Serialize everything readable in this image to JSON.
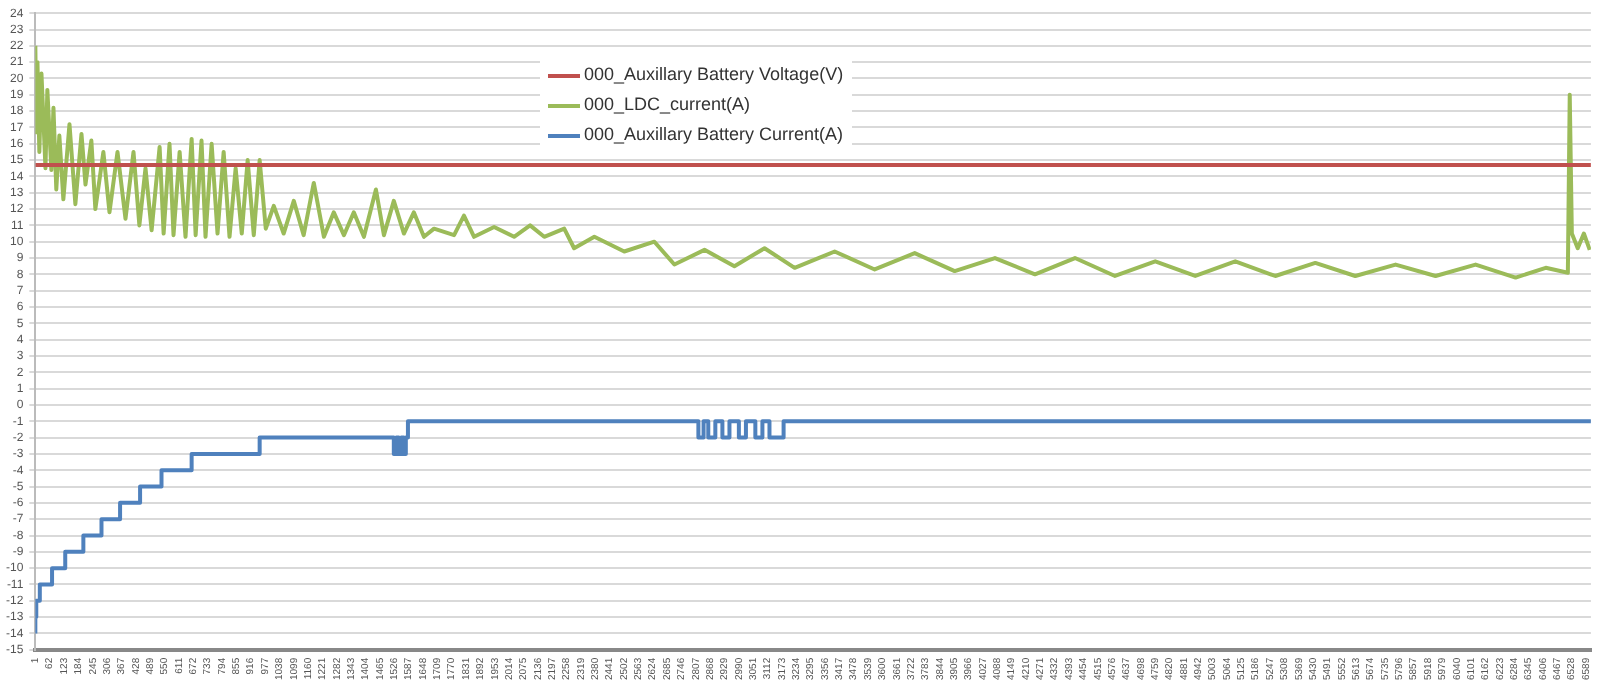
{
  "chart_data": {
    "type": "line",
    "xlim": [
      1,
      6610
    ],
    "ylim": [
      -15,
      24
    ],
    "xticks": [
      1,
      62,
      123,
      184,
      245,
      306,
      367,
      428,
      489,
      550,
      611,
      672,
      733,
      794,
      855,
      916,
      977,
      1038,
      1099,
      1160,
      1221,
      1282,
      1343,
      1404,
      1465,
      1526,
      1587,
      1648,
      1709,
      1770,
      1831,
      1892,
      1953,
      2014,
      2075,
      2136,
      2197,
      2258,
      2319,
      2380,
      2441,
      2502,
      2563,
      2624,
      2685,
      2746,
      2807,
      2868,
      2929,
      2990,
      3051,
      3112,
      3173,
      3234,
      3295,
      3356,
      3417,
      3478,
      3539,
      3600,
      3661,
      3722,
      3783,
      3844,
      3905,
      3966,
      4027,
      4088,
      4149,
      4210,
      4271,
      4332,
      4393,
      4454,
      4515,
      4576,
      4637,
      4698,
      4759,
      4820,
      4881,
      4942,
      5003,
      5064,
      5125,
      5186,
      5247,
      5308,
      5369,
      5430,
      5491,
      5552,
      5613,
      5674,
      5735,
      5796,
      5857,
      5918,
      5979,
      6040,
      6101,
      6162,
      6223,
      6284,
      6345,
      6406,
      6467,
      6528,
      6589
    ],
    "yticks": [
      -15,
      -14,
      -13,
      -12,
      -11,
      -10,
      -9,
      -8,
      -7,
      -6,
      -5,
      -4,
      -3,
      -2,
      -1,
      0,
      1,
      2,
      3,
      4,
      5,
      6,
      7,
      8,
      9,
      10,
      11,
      12,
      13,
      14,
      15,
      16,
      17,
      18,
      19,
      20,
      21,
      22,
      23,
      24
    ],
    "grid": "y",
    "legend": "top",
    "marker": "none",
    "line_style": "solid",
    "series": [
      {
        "name": "000_Auxillary Battery Voltage(V)",
        "color": "#c0504d",
        "type": "line",
        "x": [
          1,
          6610
        ],
        "values": [
          14.7,
          14.7
        ]
      },
      {
        "name": "000_LDC_current(A)",
        "color": "#9bbb59",
        "type": "line",
        "x": [
          1,
          5,
          10,
          18,
          27,
          44,
          52,
          69,
          78,
          90,
          103,
          120,
          146,
          171,
          197,
          214,
          239,
          256,
          290,
          316,
          350,
          384,
          418,
          443,
          469,
          495,
          529,
          546,
          571,
          588,
          614,
          639,
          665,
          682,
          707,
          724,
          750,
          775,
          801,
          826,
          852,
          878,
          903,
          929,
          954,
          980,
          1014,
          1056,
          1099,
          1141,
          1184,
          1227,
          1269,
          1312,
          1354,
          1397,
          1448,
          1482,
          1524,
          1567,
          1609,
          1652,
          1695,
          1780,
          1822,
          1865,
          1950,
          2035,
          2103,
          2163,
          2248,
          2290,
          2376,
          2503,
          2631,
          2716,
          2844,
          2971,
          3099,
          3227,
          3397,
          3567,
          3737,
          3907,
          4078,
          4248,
          4418,
          4588,
          4759,
          4929,
          5099,
          5269,
          5439,
          5609,
          5780,
          5950,
          6120,
          6290,
          6418,
          6512,
          6520,
          6529,
          6554,
          6580,
          6605
        ],
        "values": [
          22,
          16.7,
          21,
          15.5,
          20.3,
          14.5,
          19.3,
          14.4,
          18.2,
          13.2,
          16.5,
          12.6,
          17.2,
          12.3,
          16.6,
          13.5,
          16.2,
          12,
          15.5,
          11.8,
          15.5,
          11.4,
          15.5,
          11,
          14.5,
          10.7,
          15.8,
          10.5,
          16,
          10.4,
          15.5,
          10.3,
          16.3,
          10.4,
          16.2,
          10.3,
          16,
          10.5,
          15.5,
          10.3,
          14.5,
          10.5,
          15,
          10.4,
          15,
          10.8,
          12.2,
          10.5,
          12.5,
          10.4,
          13.6,
          10.3,
          11.8,
          10.4,
          11.8,
          10.3,
          13.2,
          10.4,
          12.5,
          10.5,
          11.8,
          10.3,
          10.8,
          10.4,
          11.6,
          10.3,
          10.9,
          10.3,
          11,
          10.3,
          10.8,
          9.6,
          10.3,
          9.4,
          10,
          8.6,
          9.5,
          8.5,
          9.6,
          8.4,
          9.4,
          8.3,
          9.3,
          8.2,
          9,
          8,
          9,
          7.9,
          8.8,
          7.9,
          8.8,
          7.9,
          8.7,
          7.9,
          8.6,
          7.9,
          8.6,
          7.8,
          8.4,
          8.1,
          19,
          10.5,
          9.6,
          10.5,
          9.5
        ]
      },
      {
        "name": "000_Auxillary Battery Current(A)",
        "color": "#4f81bd",
        "type": "step",
        "x": [
          1,
          5,
          20,
          72,
          128,
          205,
          282,
          361,
          446,
          537,
          665,
          954,
          1524,
          1535,
          1545,
          1556,
          1566,
          1575,
          1584,
          2818,
          2840,
          2860,
          2890,
          2920,
          2950,
          2990,
          3020,
          3060,
          3090,
          3120,
          3180,
          3184,
          6610
        ],
        "values": [
          -14,
          -13,
          -12,
          -11,
          -10,
          -9,
          -8,
          -7,
          -6,
          -5,
          -4,
          -3,
          -2,
          -3,
          -2,
          -3,
          -2,
          -3,
          -2,
          -1,
          -2,
          -1,
          -2,
          -1,
          -2,
          -1,
          -2,
          -1,
          -2,
          -1,
          -2,
          -1,
          -1
        ]
      }
    ]
  }
}
